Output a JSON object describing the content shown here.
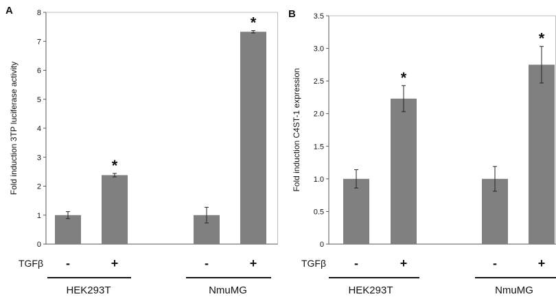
{
  "treatment_label": "TGFβ",
  "chart_data": [
    {
      "panel": "A",
      "type": "bar",
      "ylabel": "Fold induction 3TP luciferase activity",
      "ylim": [
        0,
        8
      ],
      "yticks": [
        0,
        1,
        2,
        3,
        4,
        5,
        6,
        7,
        8
      ],
      "ytick_labels": [
        "0",
        "1",
        "2",
        "3",
        "4",
        "5",
        "6",
        "7",
        "8"
      ],
      "groups": [
        {
          "name": "HEK293T",
          "bars": [
            {
              "treatment": "-",
              "value": 1.0,
              "error": 0.12,
              "significant": false
            },
            {
              "treatment": "+",
              "value": 2.38,
              "error": 0.06,
              "significant": true
            }
          ]
        },
        {
          "name": "NmuMG",
          "bars": [
            {
              "treatment": "-",
              "value": 1.0,
              "error": 0.27,
              "significant": false
            },
            {
              "treatment": "+",
              "value": 7.33,
              "error": 0.04,
              "significant": true
            }
          ]
        }
      ],
      "bar_color": "#808080",
      "grid": false
    },
    {
      "panel": "B",
      "type": "bar",
      "ylabel": "Fold induction C4ST-1 expression",
      "ylim": [
        0,
        3.5
      ],
      "yticks": [
        0,
        0.5,
        1.0,
        1.5,
        2.0,
        2.5,
        3.0,
        3.5
      ],
      "ytick_labels": [
        "0",
        "0.5",
        "1.0",
        "1.5",
        "2.0",
        "2.5",
        "3.0",
        "3.5"
      ],
      "groups": [
        {
          "name": "HEK293T",
          "bars": [
            {
              "treatment": "-",
              "value": 1.0,
              "error": 0.14,
              "significant": false
            },
            {
              "treatment": "+",
              "value": 2.23,
              "error": 0.2,
              "significant": true
            }
          ]
        },
        {
          "name": "NmuMG",
          "bars": [
            {
              "treatment": "-",
              "value": 1.0,
              "error": 0.19,
              "significant": false
            },
            {
              "treatment": "+",
              "value": 2.75,
              "error": 0.28,
              "significant": true
            }
          ]
        }
      ],
      "bar_color": "#808080",
      "grid": false
    }
  ]
}
